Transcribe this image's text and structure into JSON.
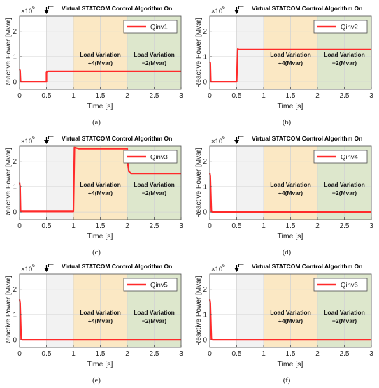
{
  "figure": {
    "annotation_text": "Virtual STATCOM Control Algorithm On",
    "annotation_x": 0.5,
    "regions": [
      {
        "label_line1": "Load Variation",
        "label_line2": "+4(Mvar)",
        "x_start": 1,
        "x_end": 2,
        "color": "#fbe8c4"
      },
      {
        "label_line1": "Load Variation",
        "label_line2": "−2(Mvar)",
        "x_start": 2,
        "x_end": 3,
        "color": "#dde7cc"
      }
    ],
    "shade_color": "#f2f2f2",
    "line_color": "#ff2a2a",
    "exponent_base": "×10",
    "exponent_power": "6",
    "ylabel": "Reactive Power [Mvar]",
    "xlabel": "Time [s]"
  },
  "chart_data": [
    {
      "type": "line",
      "caption": "(a)",
      "series_name": "Qinv1",
      "xlim": [
        0,
        3
      ],
      "ylim": [
        -0.3,
        2.6
      ],
      "xticks": [
        0,
        0.5,
        1,
        1.5,
        2,
        2.5,
        3
      ],
      "xtick_labels": [
        "0",
        "0.5",
        "1",
        "1.5",
        "2",
        "2.5",
        "3"
      ],
      "yticks": [
        0,
        1,
        2
      ],
      "ytick_labels": [
        "0",
        "1",
        "2"
      ],
      "x": [
        0,
        0.01,
        0.02,
        0.03,
        0.5,
        0.5,
        0.52,
        1,
        1.5,
        2,
        2.5,
        3
      ],
      "y": [
        0.5,
        0.45,
        0.0,
        0.0,
        0.0,
        0.38,
        0.42,
        0.42,
        0.42,
        0.42,
        0.42,
        0.42
      ]
    },
    {
      "type": "line",
      "caption": "(b)",
      "series_name": "Qinv2",
      "xlim": [
        0,
        3
      ],
      "ylim": [
        -0.3,
        2.6
      ],
      "xticks": [
        0,
        0.5,
        1,
        1.5,
        2,
        2.5,
        3
      ],
      "xtick_labels": [
        "0",
        "0.5",
        "1",
        "1.5",
        "2",
        "2.5",
        "3"
      ],
      "yticks": [
        0,
        1,
        2
      ],
      "ytick_labels": [
        "0",
        "1",
        "2"
      ],
      "x": [
        0,
        0.01,
        0.02,
        0.04,
        0.5,
        0.52,
        0.54,
        1,
        1.5,
        2,
        2.5,
        3
      ],
      "y": [
        0.8,
        0.75,
        0.0,
        0.0,
        0.0,
        1.3,
        1.28,
        1.28,
        1.28,
        1.28,
        1.28,
        1.28
      ]
    },
    {
      "type": "line",
      "caption": "(c)",
      "series_name": "Qinv3",
      "xlim": [
        0,
        3
      ],
      "ylim": [
        -0.3,
        2.6
      ],
      "xticks": [
        0,
        0.5,
        1,
        1.5,
        2,
        2.5,
        3
      ],
      "xtick_labels": [
        "0",
        "0.5",
        "1",
        "1.5",
        "2",
        "2.5",
        "3"
      ],
      "yticks": [
        0,
        1,
        2
      ],
      "ytick_labels": [
        "0",
        "1",
        "2"
      ],
      "x": [
        0,
        0.01,
        0.02,
        0.04,
        1,
        1.02,
        1.1,
        2,
        2.01,
        2.03,
        2.07,
        2.5,
        3
      ],
      "y": [
        1.15,
        1.0,
        0.02,
        0.02,
        0.02,
        2.55,
        2.5,
        2.5,
        1.9,
        1.6,
        1.52,
        1.52,
        1.52
      ]
    },
    {
      "type": "line",
      "caption": "(d)",
      "series_name": "Qinv4",
      "xlim": [
        0,
        3
      ],
      "ylim": [
        -0.3,
        2.6
      ],
      "xticks": [
        0,
        0.5,
        1,
        1.5,
        2,
        2.5,
        3
      ],
      "xtick_labels": [
        "0",
        "0.5",
        "1",
        "1.5",
        "2",
        "2.5",
        "3"
      ],
      "yticks": [
        0,
        1,
        2
      ],
      "ytick_labels": [
        "0",
        "1",
        "2"
      ],
      "x": [
        0,
        0.01,
        0.03,
        0.05,
        0.5,
        1,
        1.5,
        2,
        2.5,
        3
      ],
      "y": [
        1.55,
        1.4,
        0.02,
        0.0,
        0.0,
        0.0,
        0.0,
        0.0,
        0.0,
        0.0
      ]
    },
    {
      "type": "line",
      "caption": "(e)",
      "series_name": "Qinv5",
      "xlim": [
        0,
        3
      ],
      "ylim": [
        -0.3,
        2.6
      ],
      "xticks": [
        0,
        0.5,
        1,
        1.5,
        2,
        2.5,
        3
      ],
      "xtick_labels": [
        "0",
        "0.5",
        "1",
        "1.5",
        "2",
        "2.5",
        "3"
      ],
      "yticks": [
        0,
        1,
        2
      ],
      "ytick_labels": [
        "0",
        "1",
        "2"
      ],
      "x": [
        0,
        0.01,
        0.03,
        0.05,
        0.5,
        1,
        1.5,
        2,
        2.5,
        3
      ],
      "y": [
        1.6,
        1.45,
        0.02,
        0.0,
        0.0,
        0.0,
        0.0,
        0.0,
        0.0,
        0.0
      ]
    },
    {
      "type": "line",
      "caption": "(f)",
      "series_name": "Qinv6",
      "xlim": [
        0,
        3
      ],
      "ylim": [
        -0.3,
        2.6
      ],
      "xticks": [
        0,
        0.5,
        1,
        1.5,
        2,
        2.5,
        3
      ],
      "xtick_labels": [
        "0",
        "0.5",
        "1",
        "1.5",
        "2",
        "2.5",
        "3"
      ],
      "yticks": [
        0,
        1,
        2
      ],
      "ytick_labels": [
        "0",
        "1",
        "2"
      ],
      "x": [
        0,
        0.01,
        0.03,
        0.05,
        0.5,
        1,
        1.5,
        2,
        2.5,
        3
      ],
      "y": [
        1.6,
        1.45,
        0.02,
        0.0,
        0.0,
        0.0,
        0.0,
        0.0,
        0.0,
        0.0
      ]
    }
  ]
}
